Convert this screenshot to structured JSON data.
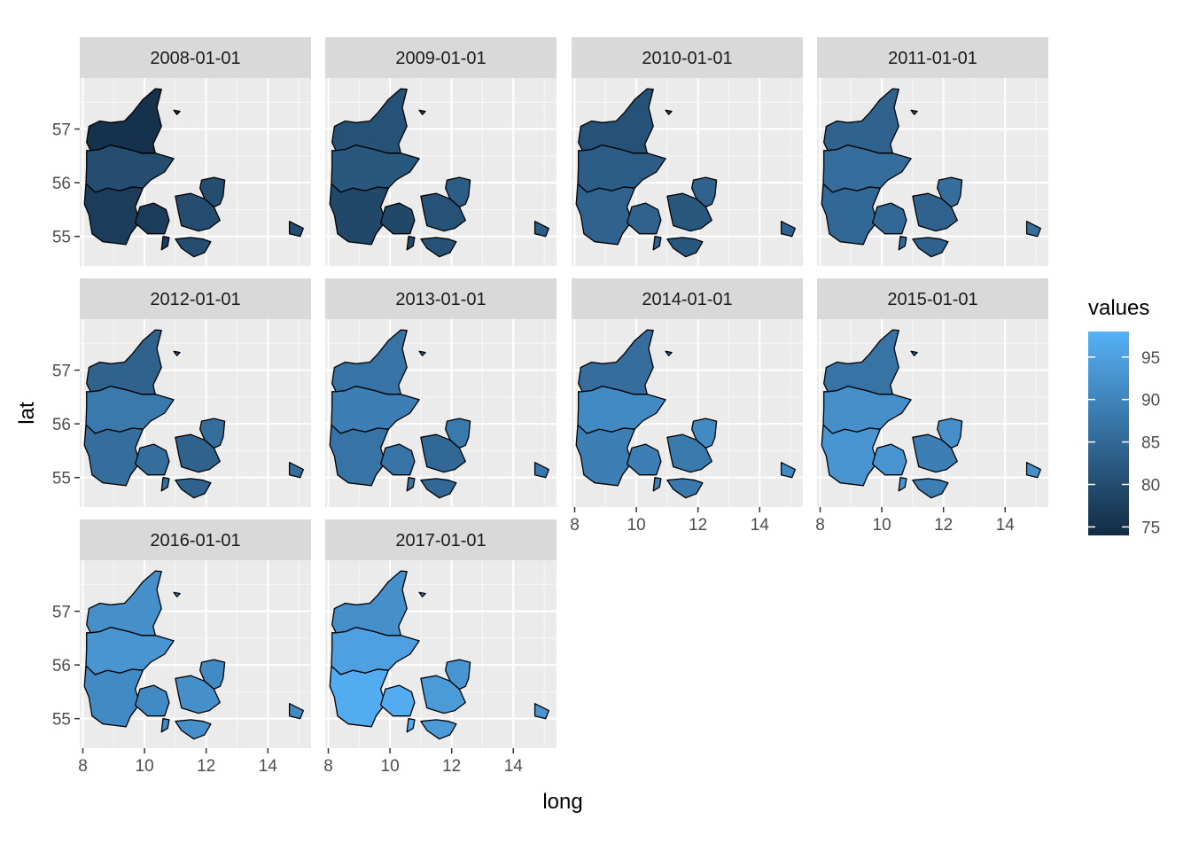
{
  "chart_data": {
    "type": "choropleth-facet",
    "region": "Denmark",
    "xlabel": "long",
    "ylabel": "lat",
    "x_ticks": [
      8,
      10,
      12,
      14
    ],
    "y_ticks": [
      55,
      56,
      57
    ],
    "xlim": [
      7.9,
      15.4
    ],
    "ylim": [
      54.45,
      57.95
    ],
    "legend": {
      "title": "values",
      "min": 74,
      "max": 98,
      "ticks": [
        75,
        80,
        85,
        90,
        95
      ],
      "color_low": "#132B43",
      "color_high": "#56B1F7",
      "position": "right"
    },
    "regions": [
      "Nordjylland",
      "Midtjylland",
      "Syddanmark",
      "Sjaelland",
      "Hovedstaden"
    ],
    "facets": [
      {
        "label": "2008-01-01",
        "values": {
          "Nordjylland": 75,
          "Midtjylland": 80,
          "Syddanmark": 77,
          "Sjaelland": 80,
          "Hovedstaden": 80
        }
      },
      {
        "label": "2009-01-01",
        "values": {
          "Nordjylland": 81,
          "Midtjylland": 82,
          "Syddanmark": 79,
          "Sjaelland": 81,
          "Hovedstaden": 83
        }
      },
      {
        "label": "2010-01-01",
        "values": {
          "Nordjylland": 81,
          "Midtjylland": 83,
          "Syddanmark": 84,
          "Sjaelland": 82,
          "Hovedstaden": 84
        }
      },
      {
        "label": "2011-01-01",
        "values": {
          "Nordjylland": 84,
          "Midtjylland": 86,
          "Syddanmark": 85,
          "Sjaelland": 84,
          "Hovedstaden": 86
        }
      },
      {
        "label": "2012-01-01",
        "values": {
          "Nordjylland": 84,
          "Midtjylland": 88,
          "Syddanmark": 86,
          "Sjaelland": 84,
          "Hovedstaden": 86
        }
      },
      {
        "label": "2013-01-01",
        "values": {
          "Nordjylland": 87,
          "Midtjylland": 89,
          "Syddanmark": 87,
          "Sjaelland": 85,
          "Hovedstaden": 88
        }
      },
      {
        "label": "2014-01-01",
        "values": {
          "Nordjylland": 86,
          "Midtjylland": 91,
          "Syddanmark": 89,
          "Sjaelland": 88,
          "Hovedstaden": 91
        }
      },
      {
        "label": "2015-01-01",
        "values": {
          "Nordjylland": 87,
          "Midtjylland": 92,
          "Syddanmark": 93,
          "Sjaelland": 89,
          "Hovedstaden": 92
        }
      },
      {
        "label": "2016-01-01",
        "values": {
          "Nordjylland": 92,
          "Midtjylland": 93,
          "Syddanmark": 91,
          "Sjaelland": 92,
          "Hovedstaden": 91
        }
      },
      {
        "label": "2017-01-01",
        "values": {
          "Nordjylland": 92,
          "Midtjylland": 95,
          "Syddanmark": 97,
          "Sjaelland": 94,
          "Hovedstaden": 93
        }
      }
    ]
  }
}
